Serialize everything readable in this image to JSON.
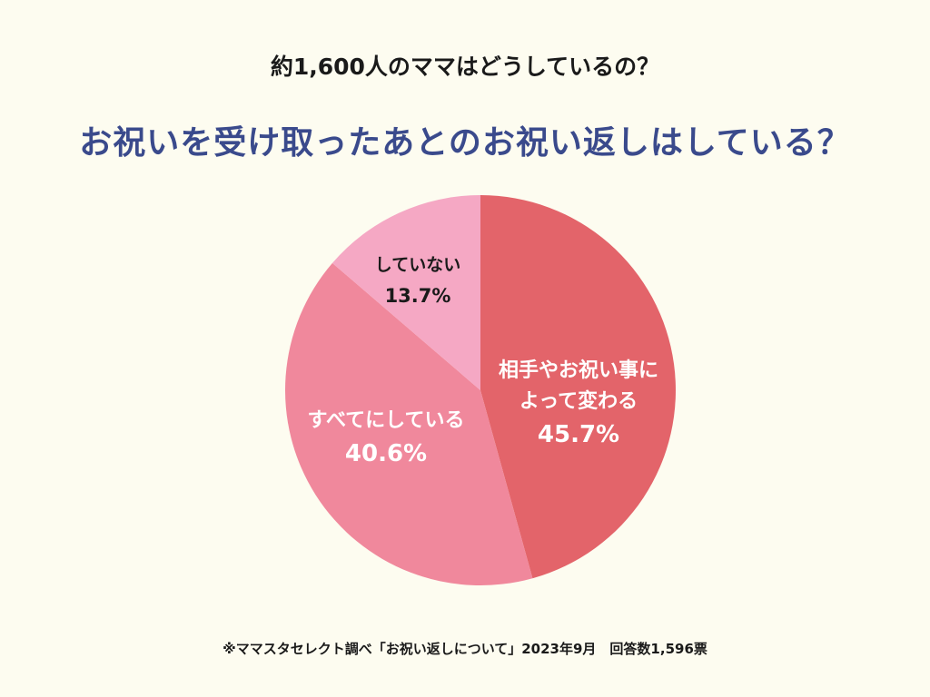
{
  "header": {
    "subtitle": "約1,600人のママはどうしているの？",
    "title": "お祝いを受け取ったあとのお祝い返しはしている？"
  },
  "chart_data": {
    "type": "pie",
    "title": "お祝いを受け取ったあとのお祝い返しはしている？",
    "subtitle": "約1,600人のママはどうしているの？",
    "slices": [
      {
        "label_lines": [
          "相手やお祝い事に",
          "よって変わる"
        ],
        "value": 45.7,
        "value_label": "45.7%",
        "color": "#e3646a",
        "text_color": "#ffffff"
      },
      {
        "label_lines": [
          "すべてにしている"
        ],
        "value": 40.6,
        "value_label": "40.6%",
        "color": "#f0889c",
        "text_color": "#ffffff"
      },
      {
        "label_lines": [
          "していない"
        ],
        "value": 13.7,
        "value_label": "13.7%",
        "color": "#f5a8c4",
        "text_color": "#1a1a1a"
      }
    ],
    "start": "12 o'clock",
    "direction": "clockwise"
  },
  "footer": {
    "note": "※ママスタセレクト調べ「お祝い返しについて」2023年9月　回答数1,596票"
  }
}
